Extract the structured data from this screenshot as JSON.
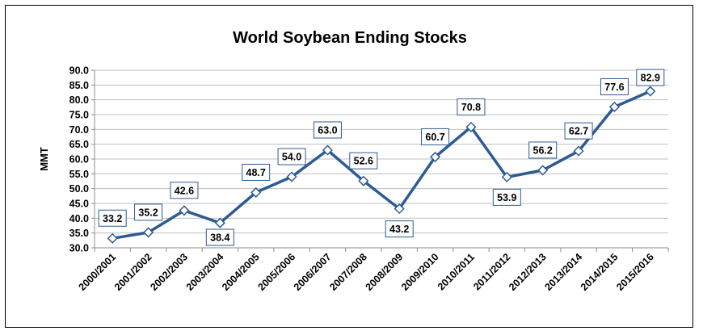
{
  "chart_data": {
    "type": "line",
    "title": "World Soybean Ending Stocks",
    "ylabel": "MMT",
    "xlabel": "",
    "ylim": [
      30.0,
      90.0
    ],
    "yticks": [
      "30.0",
      "35.0",
      "40.0",
      "45.0",
      "50.0",
      "55.0",
      "60.0",
      "65.0",
      "70.0",
      "75.0",
      "80.0",
      "85.0",
      "90.0"
    ],
    "grid": true,
    "legend": "none",
    "categories": [
      "2000/2001",
      "2001/2002",
      "2002/2003",
      "2003/2004",
      "2004/2005",
      "2005/2006",
      "2006/2007",
      "2007/2008",
      "2008/2009",
      "2009/2010",
      "2010/2011",
      "2011/2012",
      "2012/2013",
      "2013/2014",
      "2014/2015",
      "2015/2016"
    ],
    "series": [
      {
        "values": [
          33.2,
          35.2,
          42.6,
          38.4,
          48.7,
          54.0,
          63.0,
          52.6,
          43.2,
          60.7,
          70.8,
          53.9,
          56.2,
          62.7,
          77.6,
          82.9
        ],
        "labels": [
          "33.2",
          "35.2",
          "42.6",
          "38.4",
          "48.7",
          "54.0",
          "63.0",
          "52.6",
          "43.2",
          "60.7",
          "70.8",
          "53.9",
          "56.2",
          "62.7",
          "77.6",
          "82.9"
        ]
      }
    ],
    "colors": {
      "line": "#2e5b92",
      "marker_fill": "#ffffff",
      "grid": "#bfbfbf"
    }
  }
}
